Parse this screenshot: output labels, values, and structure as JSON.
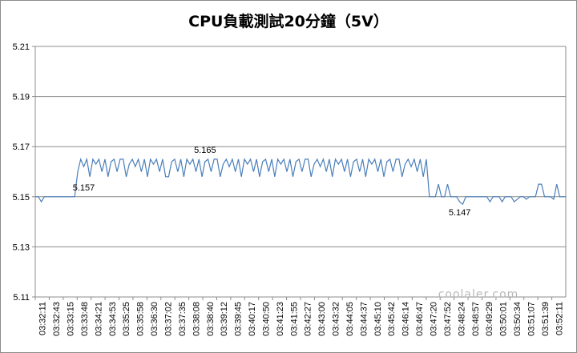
{
  "chart_data": {
    "type": "line",
    "title": "CPU負載測試20分鐘（5V）",
    "xlabel": "",
    "ylabel": "",
    "ylim": [
      5.11,
      5.21
    ],
    "yticks": [
      "5.21",
      "5.19",
      "5.17",
      "5.15",
      "5.13",
      "5.11"
    ],
    "grid": true,
    "legend": "none",
    "line_color": "#4a7ebb",
    "x_tick_labels": [
      "03:32:11",
      "03:32:43",
      "03:33:15",
      "03:33:48",
      "03:34:21",
      "03:34:53",
      "03:35:25",
      "03:35:58",
      "03:36:30",
      "03:37:02",
      "03:37:35",
      "03:38:08",
      "03:38:40",
      "03:39:12",
      "03:39:45",
      "03:40:17",
      "03:40:50",
      "03:41:23",
      "03:41:55",
      "03:42:27",
      "03:43:00",
      "03:43:32",
      "03:44:05",
      "03:44:37",
      "03:45:10",
      "03:45:42",
      "03:46:14",
      "03:46:47",
      "03:47:20",
      "03:47:52",
      "03:48:24",
      "03:48:57",
      "03:49:29",
      "03:50:01",
      "03:50:34",
      "03:51:07",
      "03:51:39",
      "03:52:11"
    ],
    "series": [
      {
        "values": [
          5.15,
          5.15,
          5.148,
          5.15,
          5.15,
          5.15,
          5.15,
          5.15,
          5.15,
          5.15,
          5.15,
          5.15,
          5.15,
          5.15,
          5.16,
          5.165,
          5.162,
          5.165,
          5.158,
          5.165,
          5.163,
          5.165,
          5.16,
          5.165,
          5.158,
          5.164,
          5.165,
          5.16,
          5.165,
          5.165,
          5.158,
          5.163,
          5.165,
          5.162,
          5.165,
          5.16,
          5.165,
          5.158,
          5.165,
          5.163,
          5.165,
          5.16,
          5.165,
          5.158,
          5.158,
          5.164,
          5.165,
          5.16,
          5.165,
          5.158,
          5.165,
          5.163,
          5.165,
          5.16,
          5.165,
          5.158,
          5.164,
          5.165,
          5.16,
          5.165,
          5.165,
          5.158,
          5.163,
          5.165,
          5.162,
          5.165,
          5.16,
          5.165,
          5.158,
          5.165,
          5.163,
          5.165,
          5.16,
          5.165,
          5.158,
          5.164,
          5.165,
          5.16,
          5.165,
          5.158,
          5.165,
          5.163,
          5.165,
          5.16,
          5.165,
          5.158,
          5.164,
          5.165,
          5.16,
          5.165,
          5.165,
          5.158,
          5.163,
          5.165,
          5.162,
          5.165,
          5.16,
          5.165,
          5.158,
          5.165,
          5.163,
          5.165,
          5.16,
          5.165,
          5.158,
          5.164,
          5.165,
          5.16,
          5.165,
          5.158,
          5.165,
          5.163,
          5.165,
          5.16,
          5.165,
          5.158,
          5.164,
          5.165,
          5.16,
          5.165,
          5.165,
          5.158,
          5.163,
          5.165,
          5.162,
          5.165,
          5.16,
          5.165,
          5.158,
          5.165,
          5.15,
          5.15,
          5.15,
          5.155,
          5.15,
          5.15,
          5.155,
          5.15,
          5.15,
          5.15,
          5.148,
          5.147,
          5.15,
          5.15,
          5.15,
          5.15,
          5.15,
          5.15,
          5.15,
          5.15,
          5.148,
          5.15,
          5.15,
          5.15,
          5.148,
          5.15,
          5.15,
          5.15,
          5.148,
          5.149,
          5.15,
          5.15,
          5.149,
          5.15,
          5.15,
          5.15,
          5.155,
          5.155,
          5.15,
          5.15,
          5.15,
          5.149,
          5.155,
          5.15,
          5.15,
          5.15
        ]
      }
    ],
    "annotations": [
      {
        "text": "5.157",
        "index": 16,
        "value": 5.157
      },
      {
        "text": "5.165",
        "index": 56,
        "value": 5.165
      },
      {
        "text": "5.147",
        "index": 140,
        "value": 5.147
      }
    ],
    "watermark": "coolaler.com"
  }
}
